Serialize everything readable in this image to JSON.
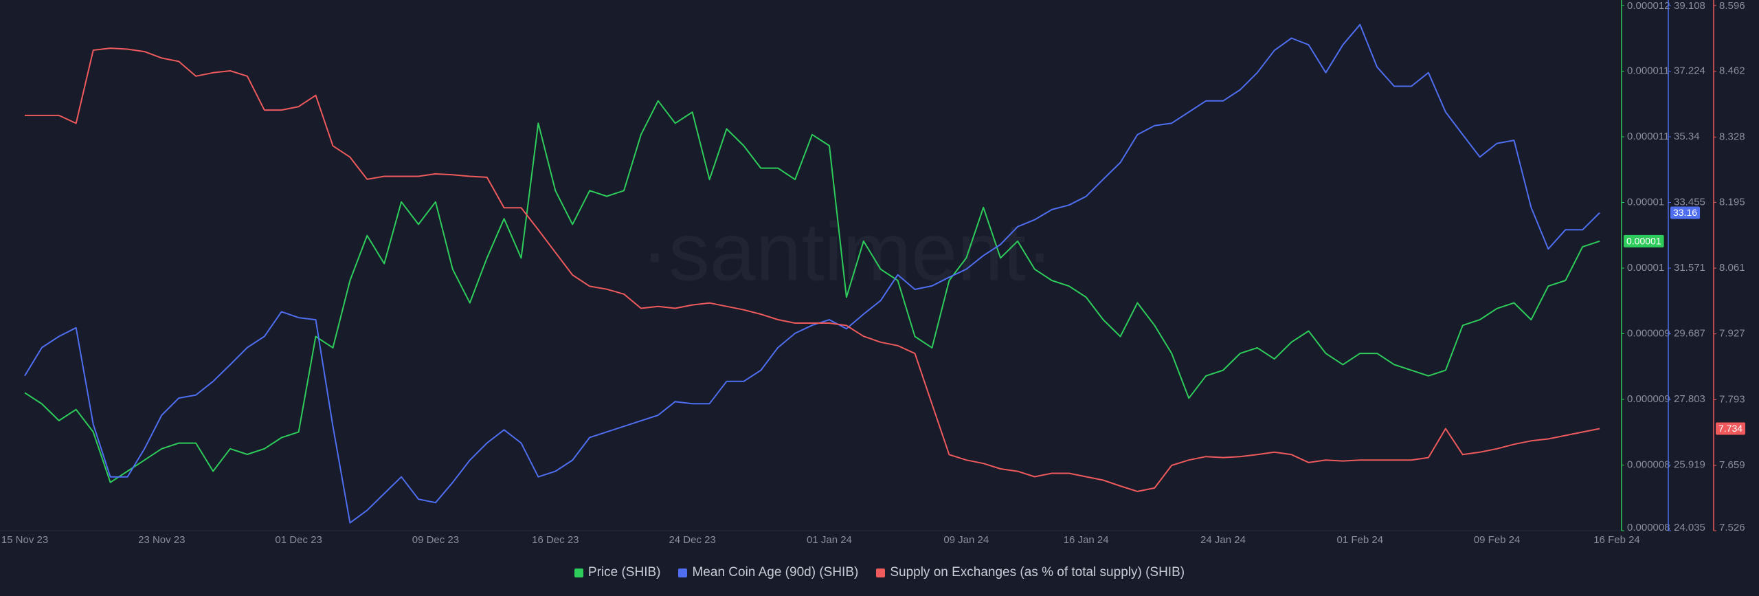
{
  "chart_data": {
    "type": "line",
    "watermark": "·santiment·",
    "xlim": [
      "15 Nov 23",
      "16 Feb 24"
    ],
    "xticks": [
      "15 Nov 23",
      "23 Nov 23",
      "01 Dec 23",
      "09 Dec 23",
      "16 Dec 23",
      "24 Dec 23",
      "01 Jan 24",
      "09 Jan 24",
      "16 Jan 24",
      "24 Jan 24",
      "01 Feb 24",
      "09 Feb 24",
      "16 Feb 24"
    ],
    "x": [
      "15 Nov 23",
      "16 Nov 23",
      "17 Nov 23",
      "18 Nov 23",
      "19 Nov 23",
      "20 Nov 23",
      "21 Nov 23",
      "22 Nov 23",
      "23 Nov 23",
      "24 Nov 23",
      "25 Nov 23",
      "26 Nov 23",
      "27 Nov 23",
      "28 Nov 23",
      "29 Nov 23",
      "30 Nov 23",
      "01 Dec 23",
      "02 Dec 23",
      "03 Dec 23",
      "04 Dec 23",
      "05 Dec 23",
      "06 Dec 23",
      "07 Dec 23",
      "08 Dec 23",
      "09 Dec 23",
      "10 Dec 23",
      "11 Dec 23",
      "12 Dec 23",
      "13 Dec 23",
      "14 Dec 23",
      "15 Dec 23",
      "16 Dec 23",
      "17 Dec 23",
      "18 Dec 23",
      "19 Dec 23",
      "20 Dec 23",
      "21 Dec 23",
      "22 Dec 23",
      "23 Dec 23",
      "24 Dec 23",
      "25 Dec 23",
      "26 Dec 23",
      "27 Dec 23",
      "28 Dec 23",
      "29 Dec 23",
      "30 Dec 23",
      "31 Dec 23",
      "01 Jan 24",
      "02 Jan 24",
      "03 Jan 24",
      "04 Jan 24",
      "05 Jan 24",
      "06 Jan 24",
      "07 Jan 24",
      "08 Jan 24",
      "09 Jan 24",
      "10 Jan 24",
      "11 Jan 24",
      "12 Jan 24",
      "13 Jan 24",
      "14 Jan 24",
      "15 Jan 24",
      "16 Jan 24",
      "17 Jan 24",
      "18 Jan 24",
      "19 Jan 24",
      "20 Jan 24",
      "21 Jan 24",
      "22 Jan 24",
      "23 Jan 24",
      "24 Jan 24",
      "25 Jan 24",
      "26 Jan 24",
      "27 Jan 24",
      "28 Jan 24",
      "29 Jan 24",
      "30 Jan 24",
      "31 Jan 24",
      "01 Feb 24",
      "02 Feb 24",
      "03 Feb 24",
      "04 Feb 24",
      "05 Feb 24",
      "06 Feb 24",
      "07 Feb 24",
      "08 Feb 24",
      "09 Feb 24",
      "10 Feb 24",
      "11 Feb 24",
      "12 Feb 24",
      "13 Feb 24",
      "14 Feb 24",
      "15 Feb 24"
    ],
    "ylim": [
      8e-06,
      1.2e-05
    ],
    "yticks": [
      8e-06,
      {
        "value": 8.5e-06,
        "label": "0.000008"
      },
      9e-06,
      {
        "value": 9.5e-06,
        "label": "0.000009"
      },
      1e-05,
      {
        "value": 1.05e-05,
        "label": "0.00001"
      },
      1.1e-05,
      {
        "value": 1.15e-05,
        "label": "0.000011"
      },
      1.2e-05
    ],
    "y2lim": [
      24.035,
      39.108
    ],
    "y2ticks": [
      24.035,
      25.919,
      27.803,
      29.687,
      31.571,
      33.455,
      35.34,
      37.224,
      39.108
    ],
    "y3lim": [
      7.526,
      8.596
    ],
    "y3ticks": [
      7.526,
      7.659,
      7.793,
      7.927,
      8.061,
      8.195,
      8.328,
      8.462,
      8.596
    ],
    "series": [
      {
        "name": "Price (SHIB)",
        "color": "#2ecc5a",
        "axis": "y",
        "last_label": "0.00001",
        "values": [
          9.051e-06,
          8.966e-06,
          8.838e-06,
          8.923e-06,
          8.752e-06,
          8.368e-06,
          8.453e-06,
          8.538e-06,
          8.624e-06,
          8.667e-06,
          8.667e-06,
          8.453e-06,
          8.624e-06,
          8.581e-06,
          8.624e-06,
          8.709e-06,
          8.752e-06,
          9.479e-06,
          9.393e-06,
          9.906e-06,
          1.0248e-05,
          1.0034e-05,
          1.0504e-05,
          1.0333e-05,
          1.0504e-05,
          9.991e-06,
          9.735e-06,
          1.0077e-05,
          1.0376e-05,
          1.0077e-05,
          1.1103e-05,
          1.059e-05,
          1.0333e-05,
          1.059e-05,
          1.0547e-05,
          1.059e-05,
          1.1017e-05,
          1.1274e-05,
          1.1103e-05,
          1.1188e-05,
          1.0675e-05,
          1.106e-05,
          1.0932e-05,
          1.0761e-05,
          1.0761e-05,
          1.0675e-05,
          1.1017e-05,
          1.0932e-05,
          9.778e-06,
          1.0205e-05,
          9.991e-06,
          9.906e-06,
          9.479e-06,
          9.393e-06,
          9.906e-06,
          1.0077e-05,
          1.0462e-05,
          1.0077e-05,
          1.0205e-05,
          9.991e-06,
          9.906e-06,
          9.863e-06,
          9.778e-06,
          9.607e-06,
          9.479e-06,
          9.735e-06,
          9.564e-06,
          9.35e-06,
          9.009e-06,
          9.179e-06,
          9.222e-06,
          9.35e-06,
          9.393e-06,
          9.308e-06,
          9.436e-06,
          9.521e-06,
          9.35e-06,
          9.265e-06,
          9.35e-06,
          9.35e-06,
          9.265e-06,
          9.222e-06,
          9.179e-06,
          9.222e-06,
          9.564e-06,
          9.607e-06,
          9.692e-06,
          9.735e-06,
          9.607e-06,
          9.863e-06,
          9.906e-06,
          1.0162e-05,
          1.0205e-05
        ]
      },
      {
        "name": "Mean Coin Age (90d) (SHIB)",
        "color": "#4f6ef0",
        "axis": "y2",
        "last_label": "33.16",
        "values": [
          28.48,
          29.29,
          29.61,
          29.86,
          27.09,
          25.58,
          25.58,
          26.39,
          27.35,
          27.84,
          27.93,
          28.32,
          28.8,
          29.29,
          29.61,
          30.32,
          30.15,
          30.09,
          27.03,
          24.26,
          24.62,
          25.1,
          25.58,
          24.94,
          24.84,
          25.42,
          26.06,
          26.55,
          26.93,
          26.55,
          25.58,
          25.74,
          26.06,
          26.71,
          26.87,
          27.03,
          27.19,
          27.35,
          27.74,
          27.68,
          27.68,
          28.32,
          28.32,
          28.64,
          29.29,
          29.7,
          29.93,
          30.09,
          29.83,
          30.25,
          30.64,
          31.38,
          30.96,
          31.06,
          31.31,
          31.54,
          31.93,
          32.25,
          32.76,
          32.96,
          33.25,
          33.38,
          33.63,
          34.12,
          34.6,
          35.4,
          35.66,
          35.73,
          36.05,
          36.37,
          36.37,
          36.69,
          37.18,
          37.82,
          38.17,
          37.98,
          37.18,
          37.98,
          38.56,
          37.34,
          36.79,
          36.79,
          37.18,
          36.05,
          35.4,
          34.76,
          35.15,
          35.24,
          33.31,
          32.12,
          32.67,
          32.67,
          33.16
        ]
      },
      {
        "name": "Supply on Exchanges (as % of total supply) (SHIB)",
        "color": "#ef5a5c",
        "axis": "y3",
        "last_label": "7.734",
        "values": [
          8.372,
          8.372,
          8.372,
          8.356,
          8.505,
          8.509,
          8.507,
          8.502,
          8.489,
          8.482,
          8.452,
          8.459,
          8.463,
          8.452,
          8.383,
          8.383,
          8.39,
          8.413,
          8.31,
          8.287,
          8.242,
          8.248,
          8.248,
          8.248,
          8.253,
          8.251,
          8.248,
          8.246,
          8.184,
          8.184,
          8.139,
          8.093,
          8.047,
          8.024,
          8.018,
          8.008,
          7.979,
          7.983,
          7.979,
          7.986,
          7.99,
          7.983,
          7.976,
          7.967,
          7.956,
          7.949,
          7.949,
          7.949,
          7.944,
          7.922,
          7.91,
          7.903,
          7.887,
          7.784,
          7.681,
          7.67,
          7.663,
          7.652,
          7.647,
          7.636,
          7.643,
          7.643,
          7.636,
          7.629,
          7.617,
          7.606,
          7.613,
          7.659,
          7.67,
          7.677,
          7.675,
          7.677,
          7.681,
          7.686,
          7.681,
          7.665,
          7.67,
          7.668,
          7.67,
          7.67,
          7.67,
          7.67,
          7.675,
          7.734,
          7.681,
          7.686,
          7.693,
          7.702,
          7.709,
          7.713,
          7.72,
          7.727,
          7.734
        ]
      }
    ]
  }
}
